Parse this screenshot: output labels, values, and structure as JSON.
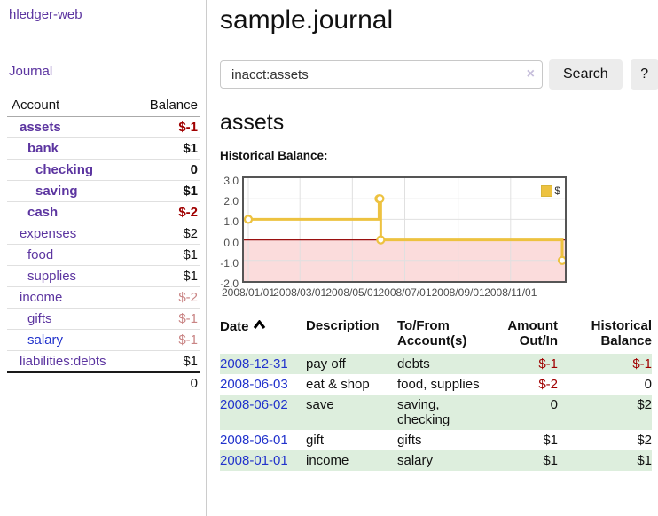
{
  "app": {
    "title": "hledger-web"
  },
  "sidebar": {
    "journal_link": "Journal",
    "accounts_table": {
      "headers": {
        "account": "Account",
        "balance": "Balance"
      },
      "rows": [
        {
          "account": "assets",
          "level": 1,
          "bold": true,
          "balance": "$-1",
          "balance_style": "neg-strong"
        },
        {
          "account": "bank",
          "level": 2,
          "bold": true,
          "balance": "$1",
          "balance_style": "pos-strong"
        },
        {
          "account": "checking",
          "level": 3,
          "bold": true,
          "balance": "0",
          "balance_style": "pos-strong"
        },
        {
          "account": "saving",
          "level": 3,
          "bold": true,
          "balance": "$1",
          "balance_style": "pos-strong"
        },
        {
          "account": "cash",
          "level": 2,
          "bold": true,
          "balance": "$-2",
          "balance_style": "neg-strong"
        },
        {
          "account": "expenses",
          "level": 1,
          "bold": false,
          "balance": "$2",
          "balance_style": "pos"
        },
        {
          "account": "food",
          "level": 2,
          "bold": false,
          "balance": "$1",
          "balance_style": "pos"
        },
        {
          "account": "supplies",
          "level": 2,
          "bold": false,
          "balance": "$1",
          "balance_style": "pos"
        },
        {
          "account": "income",
          "level": 1,
          "bold": false,
          "balance": "$-2",
          "balance_style": "neg-soft"
        },
        {
          "account": "gifts",
          "level": 2,
          "bold": false,
          "balance": "$-1",
          "balance_style": "neg-soft"
        },
        {
          "account": "salary",
          "level": 2,
          "bold": false,
          "balance": "$-1",
          "balance_style": "neg-soft",
          "link_style": "blue"
        },
        {
          "account": "liabilities:debts",
          "level": 1,
          "bold": false,
          "balance": "$1",
          "balance_style": "pos"
        }
      ],
      "total": "0"
    }
  },
  "header": {
    "title": "sample.journal"
  },
  "search": {
    "value": "inacct:assets",
    "clear_icon": "×",
    "search_label": "Search",
    "help_label": "?"
  },
  "account_page": {
    "heading": "assets",
    "chart_label": "Historical Balance:"
  },
  "chart_data": {
    "type": "line",
    "step": true,
    "title": "Historical Balance",
    "series": [
      {
        "name": "$",
        "color": "#edc240",
        "points": [
          [
            "2008-01-01",
            1
          ],
          [
            "2008-06-01",
            2
          ],
          [
            "2008-06-02",
            2
          ],
          [
            "2008-06-03",
            0
          ],
          [
            "2008-12-31",
            -1
          ]
        ]
      }
    ],
    "xlim": [
      "2008-01-01",
      "2008-12-31"
    ],
    "ylim": [
      -2,
      3
    ],
    "x_ticks": [
      "2008/01/01",
      "2008/03/01",
      "2008/05/01",
      "2008/07/01",
      "2008/09/01",
      "2008/11/01"
    ],
    "y_ticks": [
      "3.0",
      "2.0",
      "1.0",
      "0.0",
      "-1.0",
      "-2.0"
    ],
    "grid": true,
    "gridline_color": "#e0e0e0",
    "negative_region_color": "#fbdcdc",
    "zero_line_color": "#9a1010",
    "border_color": "#555555",
    "legend": {
      "label": "$",
      "position": "top-right"
    }
  },
  "register_table": {
    "headers": {
      "date": "Date",
      "description": "Description",
      "accounts": "To/From Account(s)",
      "amount": "Amount Out/In",
      "balance": "Historical Balance"
    },
    "sort": "ascending",
    "rows": [
      {
        "date": "2008-12-31",
        "description": "pay off",
        "accounts": "debts",
        "amount": "$-1",
        "amount_style": "neg",
        "balance": "$-1",
        "balance_style": "neg"
      },
      {
        "date": "2008-06-03",
        "description": "eat & shop",
        "accounts": "food, supplies",
        "amount": "$-2",
        "amount_style": "neg",
        "balance": "0",
        "balance_style": "pos"
      },
      {
        "date": "2008-06-02",
        "description": "save",
        "accounts": "saving, checking",
        "amount": "0",
        "amount_style": "pos",
        "balance": "$2",
        "balance_style": "pos"
      },
      {
        "date": "2008-06-01",
        "description": "gift",
        "accounts": "gifts",
        "amount": "$1",
        "amount_style": "pos",
        "balance": "$2",
        "balance_style": "pos"
      },
      {
        "date": "2008-01-01",
        "description": "income",
        "accounts": "salary",
        "amount": "$1",
        "amount_style": "pos",
        "balance": "$1",
        "balance_style": "pos"
      }
    ]
  },
  "colors": {
    "link_purple": "#5c35a0",
    "link_blue": "#2233cc",
    "negative_strong": "#a00000",
    "negative_soft": "#c98484",
    "row_stripe_green": "#ddeedd",
    "series_gold": "#edc240",
    "chart_negative_fill": "#fbdcdc",
    "zero_line": "#9a1010"
  }
}
